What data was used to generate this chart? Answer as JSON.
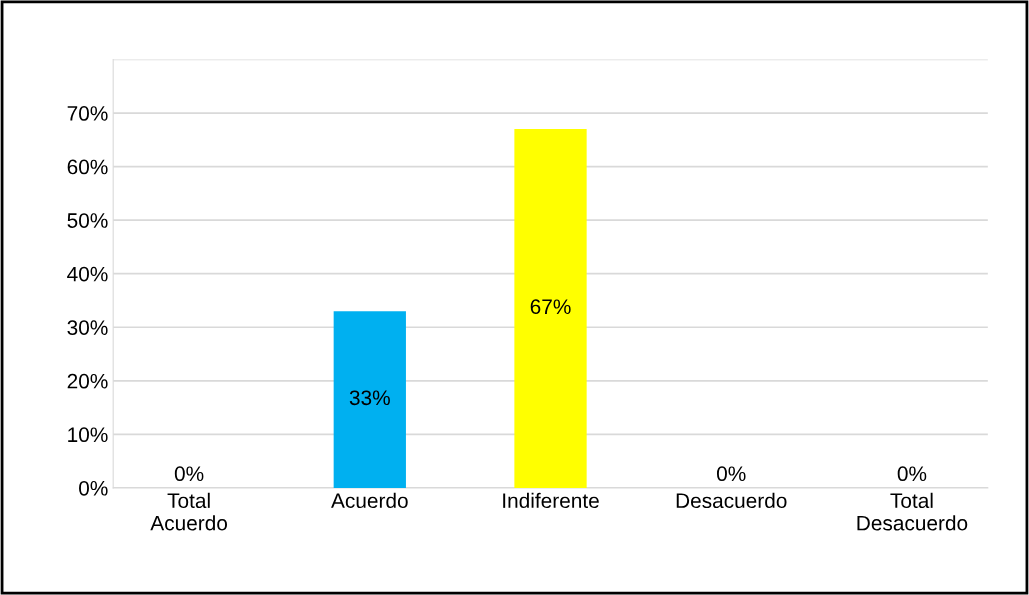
{
  "chart_data": {
    "type": "bar",
    "categories": [
      "Total\nAcuerdo",
      "Acuerdo",
      "Indiferente",
      "Desacuerdo",
      "Total\nDesacuerdo"
    ],
    "values": [
      0,
      33,
      67,
      0,
      0
    ],
    "colors": [
      "#70a040",
      "#00b0f0",
      "#ffff00",
      "#00c8a0",
      "#c09000"
    ],
    "value_labels": [
      "0%",
      "33%",
      "67%",
      "0%",
      "0%"
    ],
    "ylim": [
      0,
      80
    ],
    "yticks": [
      {
        "value": 0,
        "label": "0%"
      },
      {
        "value": 10,
        "label": "10%"
      },
      {
        "value": 20,
        "label": "20%"
      },
      {
        "value": 30,
        "label": "30%"
      },
      {
        "value": 40,
        "label": "40%"
      },
      {
        "value": 50,
        "label": "50%"
      },
      {
        "value": 60,
        "label": "60%"
      },
      {
        "value": 70,
        "label": "70%"
      },
      {
        "value": 80,
        "label": null
      }
    ],
    "grid": "y",
    "legend": false
  }
}
